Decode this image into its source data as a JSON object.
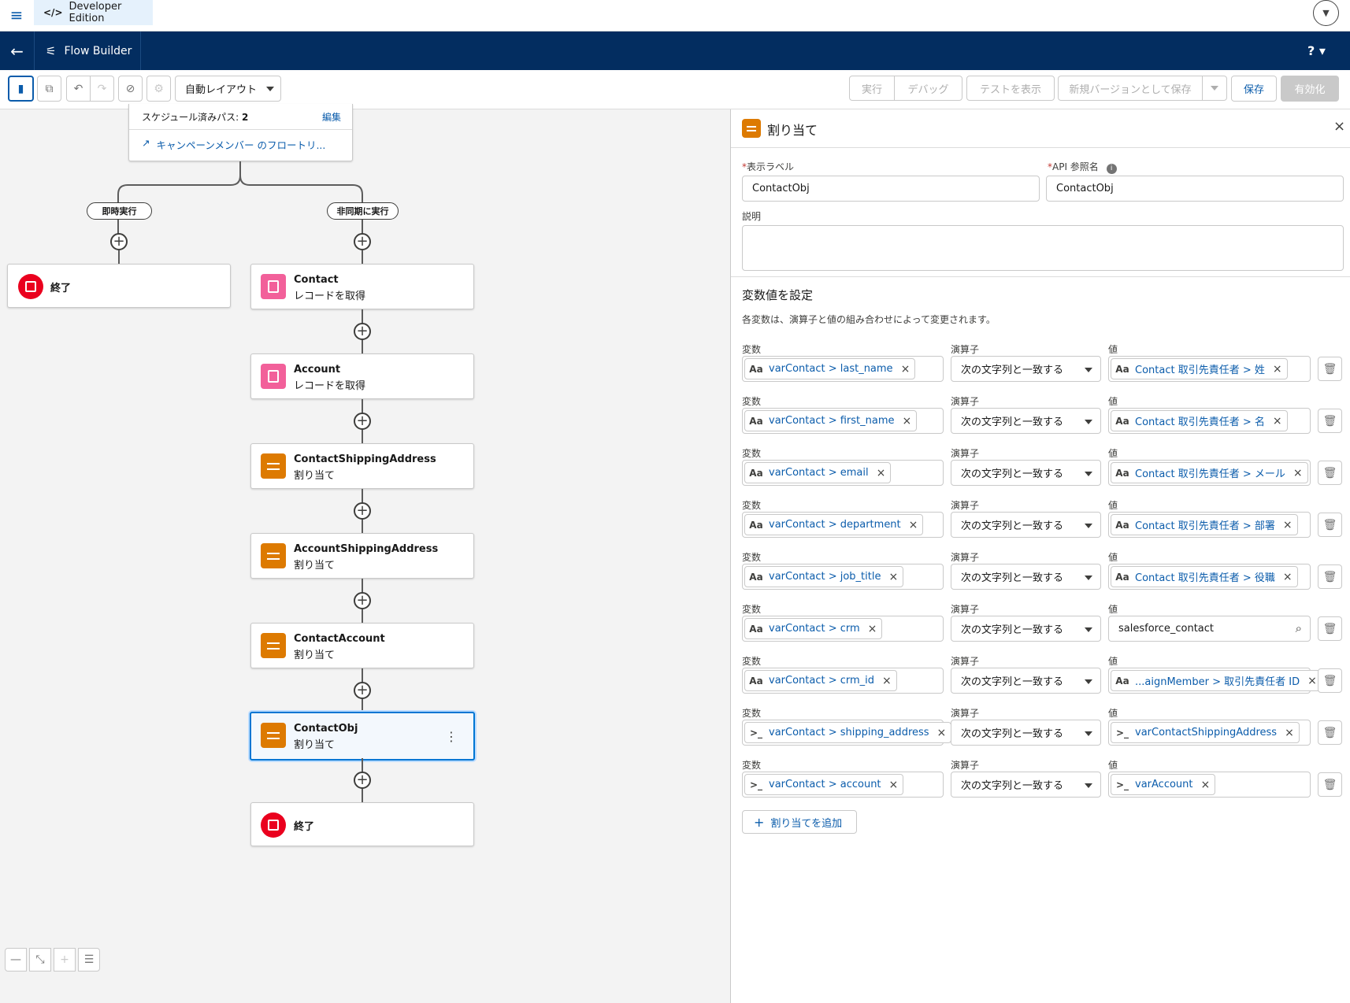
{
  "topbar": {
    "edition": "Developer Edition"
  },
  "nav": {
    "title": "Flow Builder",
    "help": "? ▾"
  },
  "toolbar": {
    "layout": "自動レイアウト",
    "run": "実行",
    "debug": "デバッグ",
    "view_tests": "テストを表示",
    "save_new_version": "新規バージョンとして保存",
    "save": "保存",
    "activate": "有効化"
  },
  "canvas": {
    "scheduled_paths_label": "スケジュール済みパス: ",
    "scheduled_paths_count": "2",
    "edit": "編集",
    "flow_link": "キャンペーンメンバー のフロートリ...",
    "branch_immediate": "即時実行",
    "branch_async": "非同期に実行",
    "end_label": "終了",
    "nodes": [
      {
        "title": "Contact",
        "sub": "レコードを取得",
        "icon": "get-records-icon"
      },
      {
        "title": "Account",
        "sub": "レコードを取得",
        "icon": "get-records-icon"
      },
      {
        "title": "ContactShippingAddress",
        "sub": "割り当て",
        "icon": "assignment-icon"
      },
      {
        "title": "AccountShippingAddress",
        "sub": "割り当て",
        "icon": "assignment-icon"
      },
      {
        "title": "ContactAccount",
        "sub": "割り当て",
        "icon": "assignment-icon"
      },
      {
        "title": "ContactObj",
        "sub": "割り当て",
        "icon": "assignment-icon"
      }
    ]
  },
  "panel": {
    "title": "割り当て",
    "display_label_label": "表示ラベル",
    "display_label_value": "ContactObj",
    "api_name_label": "API 参照名",
    "api_name_value": "ContactObj",
    "description_label": "説明",
    "section_title": "変数値を設定",
    "section_desc": "各変数は、演算子と値の組み合わせによって変更されます。",
    "col_variable": "変数",
    "col_operator": "演算子",
    "col_value": "値",
    "add_assignment": "割り当てを追加",
    "rows": [
      {
        "variable": "varContact > last_name",
        "var_icon": "Aa",
        "operator": "次の文字列と一致する",
        "value": "Contact 取引先責任者 > 姓",
        "val_icon": "Aa"
      },
      {
        "variable": "varContact > first_name",
        "var_icon": "Aa",
        "operator": "次の文字列と一致する",
        "value": "Contact 取引先責任者 > 名",
        "val_icon": "Aa"
      },
      {
        "variable": "varContact > email",
        "var_icon": "Aa",
        "operator": "次の文字列と一致する",
        "value": "Contact 取引先責任者 > メール",
        "val_icon": "Aa"
      },
      {
        "variable": "varContact > department",
        "var_icon": "Aa",
        "operator": "次の文字列と一致する",
        "value": "Contact 取引先責任者 > 部署",
        "val_icon": "Aa"
      },
      {
        "variable": "varContact > job_title",
        "var_icon": "Aa",
        "operator": "次の文字列と一致する",
        "value": "Contact 取引先責任者 > 役職",
        "val_icon": "Aa"
      },
      {
        "variable": "varContact > crm",
        "var_icon": "Aa",
        "operator": "次の文字列と一致する",
        "value": "salesforce_contact",
        "val_icon": ""
      },
      {
        "variable": "varContact > crm_id",
        "var_icon": "Aa",
        "operator": "次の文字列と一致する",
        "value": "...aignMember > 取引先責任者 ID",
        "val_icon": "Aa"
      },
      {
        "variable": "varContact > shipping_address",
        "var_icon": ">_",
        "operator": "次の文字列と一致する",
        "value": "varContactShippingAddress",
        "val_icon": ">_"
      },
      {
        "variable": "varContact > account",
        "var_icon": ">_",
        "operator": "次の文字列と一致する",
        "value": "varAccount",
        "val_icon": ">_"
      }
    ]
  }
}
